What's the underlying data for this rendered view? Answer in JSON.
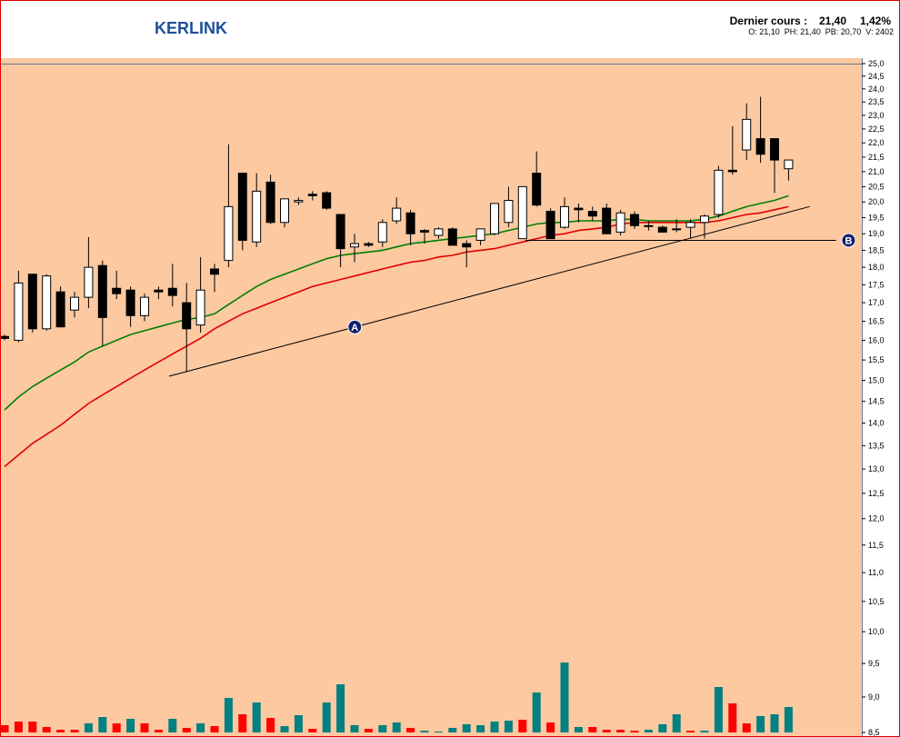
{
  "header": {
    "title": "KERLINK",
    "last_label": "Dernier cours :",
    "last": "21,40",
    "change": "1,42%",
    "details": "O: 21,10  PH: 21,40  PB: 20,70  V: 2402"
  },
  "chart_data": {
    "type": "candlestick",
    "log_scale": true,
    "up_color": "#ffffff",
    "down_color": "#000000",
    "open": [
      16.1,
      16.0,
      17.8,
      16.3,
      17.3,
      16.8,
      17.15,
      18.05,
      17.4,
      17.35,
      16.65,
      17.35,
      17.4,
      17.0,
      16.4,
      17.95,
      18.2,
      20.95,
      18.75,
      20.65,
      19.35,
      20.0,
      20.25,
      20.3,
      19.6,
      18.6,
      18.7,
      18.75,
      19.4,
      19.65,
      19.1,
      18.95,
      19.15,
      18.7,
      18.8,
      19.0,
      19.35,
      18.85,
      20.95,
      19.7,
      19.2,
      19.8,
      19.7,
      19.8,
      19.05,
      19.6,
      19.25,
      19.2,
      19.15,
      19.2,
      19.35,
      19.6,
      21.05,
      21.75,
      22.15,
      22.15,
      21.1
    ],
    "high": [
      16.15,
      17.9,
      17.8,
      17.8,
      17.45,
      17.3,
      18.9,
      18.2,
      17.9,
      17.45,
      17.25,
      17.45,
      18.1,
      17.55,
      18.3,
      18.1,
      21.95,
      20.95,
      20.95,
      20.9,
      20.1,
      20.15,
      20.35,
      20.35,
      19.6,
      19.0,
      18.75,
      19.45,
      20.15,
      19.75,
      19.15,
      19.2,
      19.2,
      18.8,
      19.15,
      19.95,
      20.5,
      20.5,
      21.7,
      19.8,
      20.15,
      19.95,
      19.85,
      19.95,
      19.75,
      19.7,
      19.4,
      19.25,
      19.45,
      19.45,
      19.6,
      21.2,
      22.6,
      23.45,
      23.7,
      22.15,
      21.4
    ],
    "low": [
      16.0,
      15.95,
      16.2,
      16.25,
      16.35,
      16.6,
      16.85,
      15.85,
      17.1,
      16.35,
      16.5,
      17.1,
      16.9,
      15.2,
      16.2,
      17.3,
      18.0,
      18.5,
      18.6,
      19.3,
      19.2,
      19.9,
      20.05,
      19.75,
      18.0,
      18.15,
      18.6,
      18.6,
      19.3,
      18.65,
      18.7,
      18.85,
      18.65,
      18.0,
      18.65,
      18.95,
      19.2,
      18.85,
      19.85,
      18.85,
      19.15,
      19.35,
      19.4,
      19.0,
      18.95,
      19.15,
      19.1,
      19.05,
      19.05,
      18.85,
      18.85,
      19.5,
      20.9,
      21.4,
      21.3,
      20.3,
      20.7
    ],
    "close": [
      16.05,
      17.55,
      16.3,
      17.75,
      16.35,
      17.15,
      18.0,
      16.6,
      17.25,
      16.65,
      17.15,
      17.3,
      17.2,
      16.3,
      17.35,
      17.8,
      19.85,
      18.8,
      20.35,
      19.35,
      20.1,
      20.05,
      20.2,
      19.8,
      18.55,
      18.7,
      18.65,
      19.35,
      19.8,
      19.0,
      19.05,
      19.15,
      18.65,
      18.6,
      19.15,
      19.95,
      20.05,
      20.5,
      19.9,
      18.85,
      19.85,
      19.75,
      19.55,
      19.0,
      19.65,
      19.25,
      19.25,
      19.05,
      19.15,
      19.35,
      19.55,
      21.05,
      21.0,
      22.85,
      21.6,
      21.4,
      21.4
    ],
    "series": [
      {
        "color": "#008000",
        "values": [
          14.3,
          14.6,
          14.85,
          15.05,
          15.25,
          15.45,
          15.7,
          15.85,
          16.0,
          16.15,
          16.25,
          16.35,
          16.45,
          16.55,
          16.6,
          16.7,
          16.95,
          17.2,
          17.45,
          17.65,
          17.8,
          17.95,
          18.1,
          18.25,
          18.35,
          18.4,
          18.45,
          18.5,
          18.6,
          18.7,
          18.75,
          18.8,
          18.85,
          18.9,
          18.95,
          19.0,
          19.1,
          19.2,
          19.3,
          19.35,
          19.35,
          19.4,
          19.4,
          19.4,
          19.45,
          19.45,
          19.4,
          19.4,
          19.4,
          19.4,
          19.45,
          19.55,
          19.7,
          19.85,
          19.95,
          20.05,
          20.2
        ]
      },
      {
        "color": "#e00000",
        "values": [
          13.05,
          13.3,
          13.55,
          13.75,
          13.95,
          14.2,
          14.45,
          14.65,
          14.85,
          15.05,
          15.25,
          15.45,
          15.65,
          15.85,
          16.05,
          16.3,
          16.5,
          16.7,
          16.85,
          17.0,
          17.15,
          17.3,
          17.45,
          17.55,
          17.65,
          17.75,
          17.85,
          17.95,
          18.05,
          18.15,
          18.2,
          18.3,
          18.35,
          18.45,
          18.5,
          18.55,
          18.65,
          18.75,
          18.85,
          18.95,
          19.0,
          19.1,
          19.15,
          19.2,
          19.3,
          19.35,
          19.35,
          19.35,
          19.35,
          19.35,
          19.35,
          19.4,
          19.5,
          19.6,
          19.65,
          19.75,
          19.85
        ]
      }
    ],
    "volume": [
      8,
      12,
      12,
      6,
      3,
      3,
      10,
      17,
      10,
      15,
      10,
      3,
      15,
      5,
      10,
      7,
      38,
      20,
      33,
      16,
      7,
      19,
      4,
      33,
      53,
      8,
      4,
      8,
      11,
      5,
      2,
      1,
      5,
      9,
      8,
      12,
      13,
      14,
      44,
      11,
      77,
      6,
      6,
      3,
      3,
      2,
      3,
      9,
      20,
      2,
      2,
      50,
      32,
      10,
      18,
      20,
      28
    ],
    "volume_colors": [
      "#ff0000",
      "#ff0000",
      "#ff0000",
      "#ff0000",
      "#ff0000",
      "#ff0000",
      "#008080",
      "#008080",
      "#ff0000",
      "#008080",
      "#ff0000",
      "#ff0000",
      "#008080",
      "#ff0000",
      "#008080",
      "#ff0000",
      "#008080",
      "#ff0000",
      "#008080",
      "#ff0000",
      "#008080",
      "#008080",
      "#ff0000",
      "#008080",
      "#008080",
      "#008080",
      "#ff0000",
      "#008080",
      "#008080",
      "#ff0000",
      "#008080",
      "#008080",
      "#008080",
      "#008080",
      "#008080",
      "#008080",
      "#008080",
      "#ff0000",
      "#008080",
      "#ff0000",
      "#008080",
      "#008080",
      "#ff0000",
      "#ff0000",
      "#ff0000",
      "#ff0000",
      "#008080",
      "#008080",
      "#008080",
      "#ff0000",
      "#008080",
      "#008080",
      "#ff0000",
      "#ff0000",
      "#008080",
      "#008080",
      "#008080"
    ],
    "trendlines": [
      {
        "label": "A",
        "x": [
          11.75,
          57.5
        ],
        "y": [
          15.1,
          19.85
        ]
      },
      {
        "label": "B",
        "x": [
          37.2,
          59.4
        ],
        "y": [
          18.8,
          18.8
        ]
      }
    ],
    "ylim": [
      8.5,
      25
    ],
    "yticks": [
      {
        "value": 8.5,
        "label": "8,5"
      },
      {
        "value": 9,
        "label": "9,0"
      },
      {
        "value": 9.5,
        "label": "9,5"
      },
      {
        "value": 10,
        "label": "10,0"
      },
      {
        "value": 10.5,
        "label": "10,5"
      },
      {
        "value": 11,
        "label": "11,0"
      },
      {
        "value": 11.5,
        "label": "11,5"
      },
      {
        "value": 12,
        "label": "12,0"
      },
      {
        "value": 12.5,
        "label": "12,5"
      },
      {
        "value": 13,
        "label": "13,0"
      },
      {
        "value": 13.5,
        "label": "13,5"
      },
      {
        "value": 14,
        "label": "14,0"
      },
      {
        "value": 14.5,
        "label": "14,5"
      },
      {
        "value": 15,
        "label": "15,0"
      },
      {
        "value": 15.5,
        "label": "15,5"
      },
      {
        "value": 16,
        "label": "16,0"
      },
      {
        "value": 16.5,
        "label": "16,5"
      },
      {
        "value": 17,
        "label": "17,0"
      },
      {
        "value": 17.5,
        "label": "17,5"
      },
      {
        "value": 18,
        "label": "18,0"
      },
      {
        "value": 18.5,
        "label": "18,5"
      },
      {
        "value": 19,
        "label": "19,0"
      },
      {
        "value": 19.5,
        "label": "19,5"
      },
      {
        "value": 20,
        "label": "20,0"
      },
      {
        "value": 20.5,
        "label": "20,5"
      },
      {
        "value": 21,
        "label": "21,0"
      },
      {
        "value": 21.5,
        "label": "21,5"
      },
      {
        "value": 22,
        "label": "22,0"
      },
      {
        "value": 22.5,
        "label": "22,5"
      },
      {
        "value": 23,
        "label": "23,0"
      },
      {
        "value": 23.5,
        "label": "23,5"
      },
      {
        "value": 24,
        "label": "24,0"
      },
      {
        "value": 24.5,
        "label": "24,5"
      },
      {
        "value": 25,
        "label": "25,0"
      }
    ]
  }
}
